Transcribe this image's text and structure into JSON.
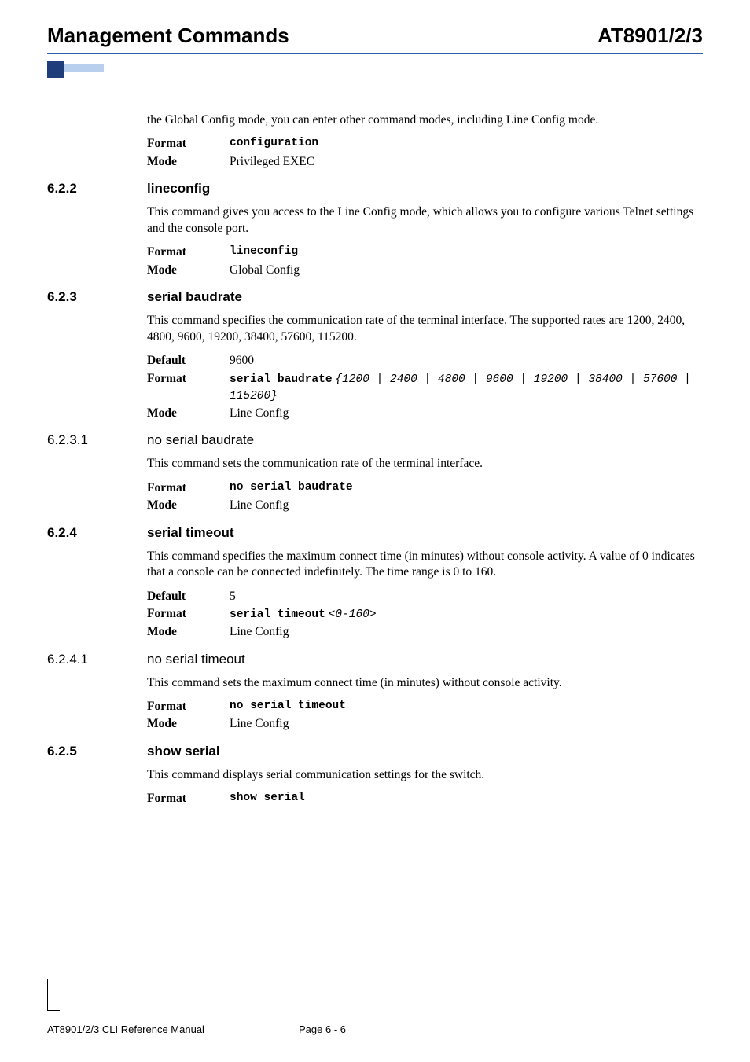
{
  "header": {
    "left": "Management Commands",
    "right": "AT8901/2/3"
  },
  "intro_para": "the Global Config mode, you can enter other command modes, including Line Config mode.",
  "intro_cmd": {
    "format_label": "Format",
    "format_val": "configuration",
    "mode_label": "Mode",
    "mode_val": "Privileged EXEC"
  },
  "s622": {
    "num": "6.2.2",
    "title": "lineconfig",
    "para": "This command gives you access to the Line Config mode, which allows you to configure various Telnet settings and the console port.",
    "format_label": "Format",
    "format_val": "lineconfig",
    "mode_label": "Mode",
    "mode_val": "Global Config"
  },
  "s623": {
    "num": "6.2.3",
    "title": "serial baudrate",
    "para": "This command specifies the communication rate of the terminal interface. The supported rates are 1200, 2400, 4800, 9600, 19200, 38400, 57600, 115200.",
    "default_label": "Default",
    "default_val": "9600",
    "format_label": "Format",
    "format_bold": "serial baudrate",
    "format_italic": "{1200 | 2400 | 4800 | 9600 | 19200 | 38400 | 57600 | 115200}",
    "mode_label": "Mode",
    "mode_val": "Line Config"
  },
  "s6231": {
    "num": "6.2.3.1",
    "title": "no serial baudrate",
    "para": "This command sets the communication rate of the terminal interface.",
    "format_label": "Format",
    "format_val": "no serial baudrate",
    "mode_label": "Mode",
    "mode_val": "Line Config"
  },
  "s624": {
    "num": "6.2.4",
    "title": "serial timeout",
    "para": "This command specifies the maximum connect time (in minutes) without console activity. A value of 0 indicates that a console can be connected indefinitely. The time range is 0 to 160.",
    "default_label": "Default",
    "default_val": "5",
    "format_label": "Format",
    "format_bold": "serial timeout",
    "format_italic": "<0-160>",
    "mode_label": "Mode",
    "mode_val": "Line Config"
  },
  "s6241": {
    "num": "6.2.4.1",
    "title": "no serial timeout",
    "para": "This command sets the maximum connect time (in minutes) without console activity.",
    "format_label": "Format",
    "format_val": "no serial timeout",
    "mode_label": "Mode",
    "mode_val": "Line Config"
  },
  "s625": {
    "num": "6.2.5",
    "title": "show serial",
    "para": "This command displays serial communication settings for the switch.",
    "format_label": "Format",
    "format_val": "show serial"
  },
  "footer": {
    "left": "AT8901/2/3 CLI Reference Manual",
    "center": "Page 6 - 6"
  }
}
